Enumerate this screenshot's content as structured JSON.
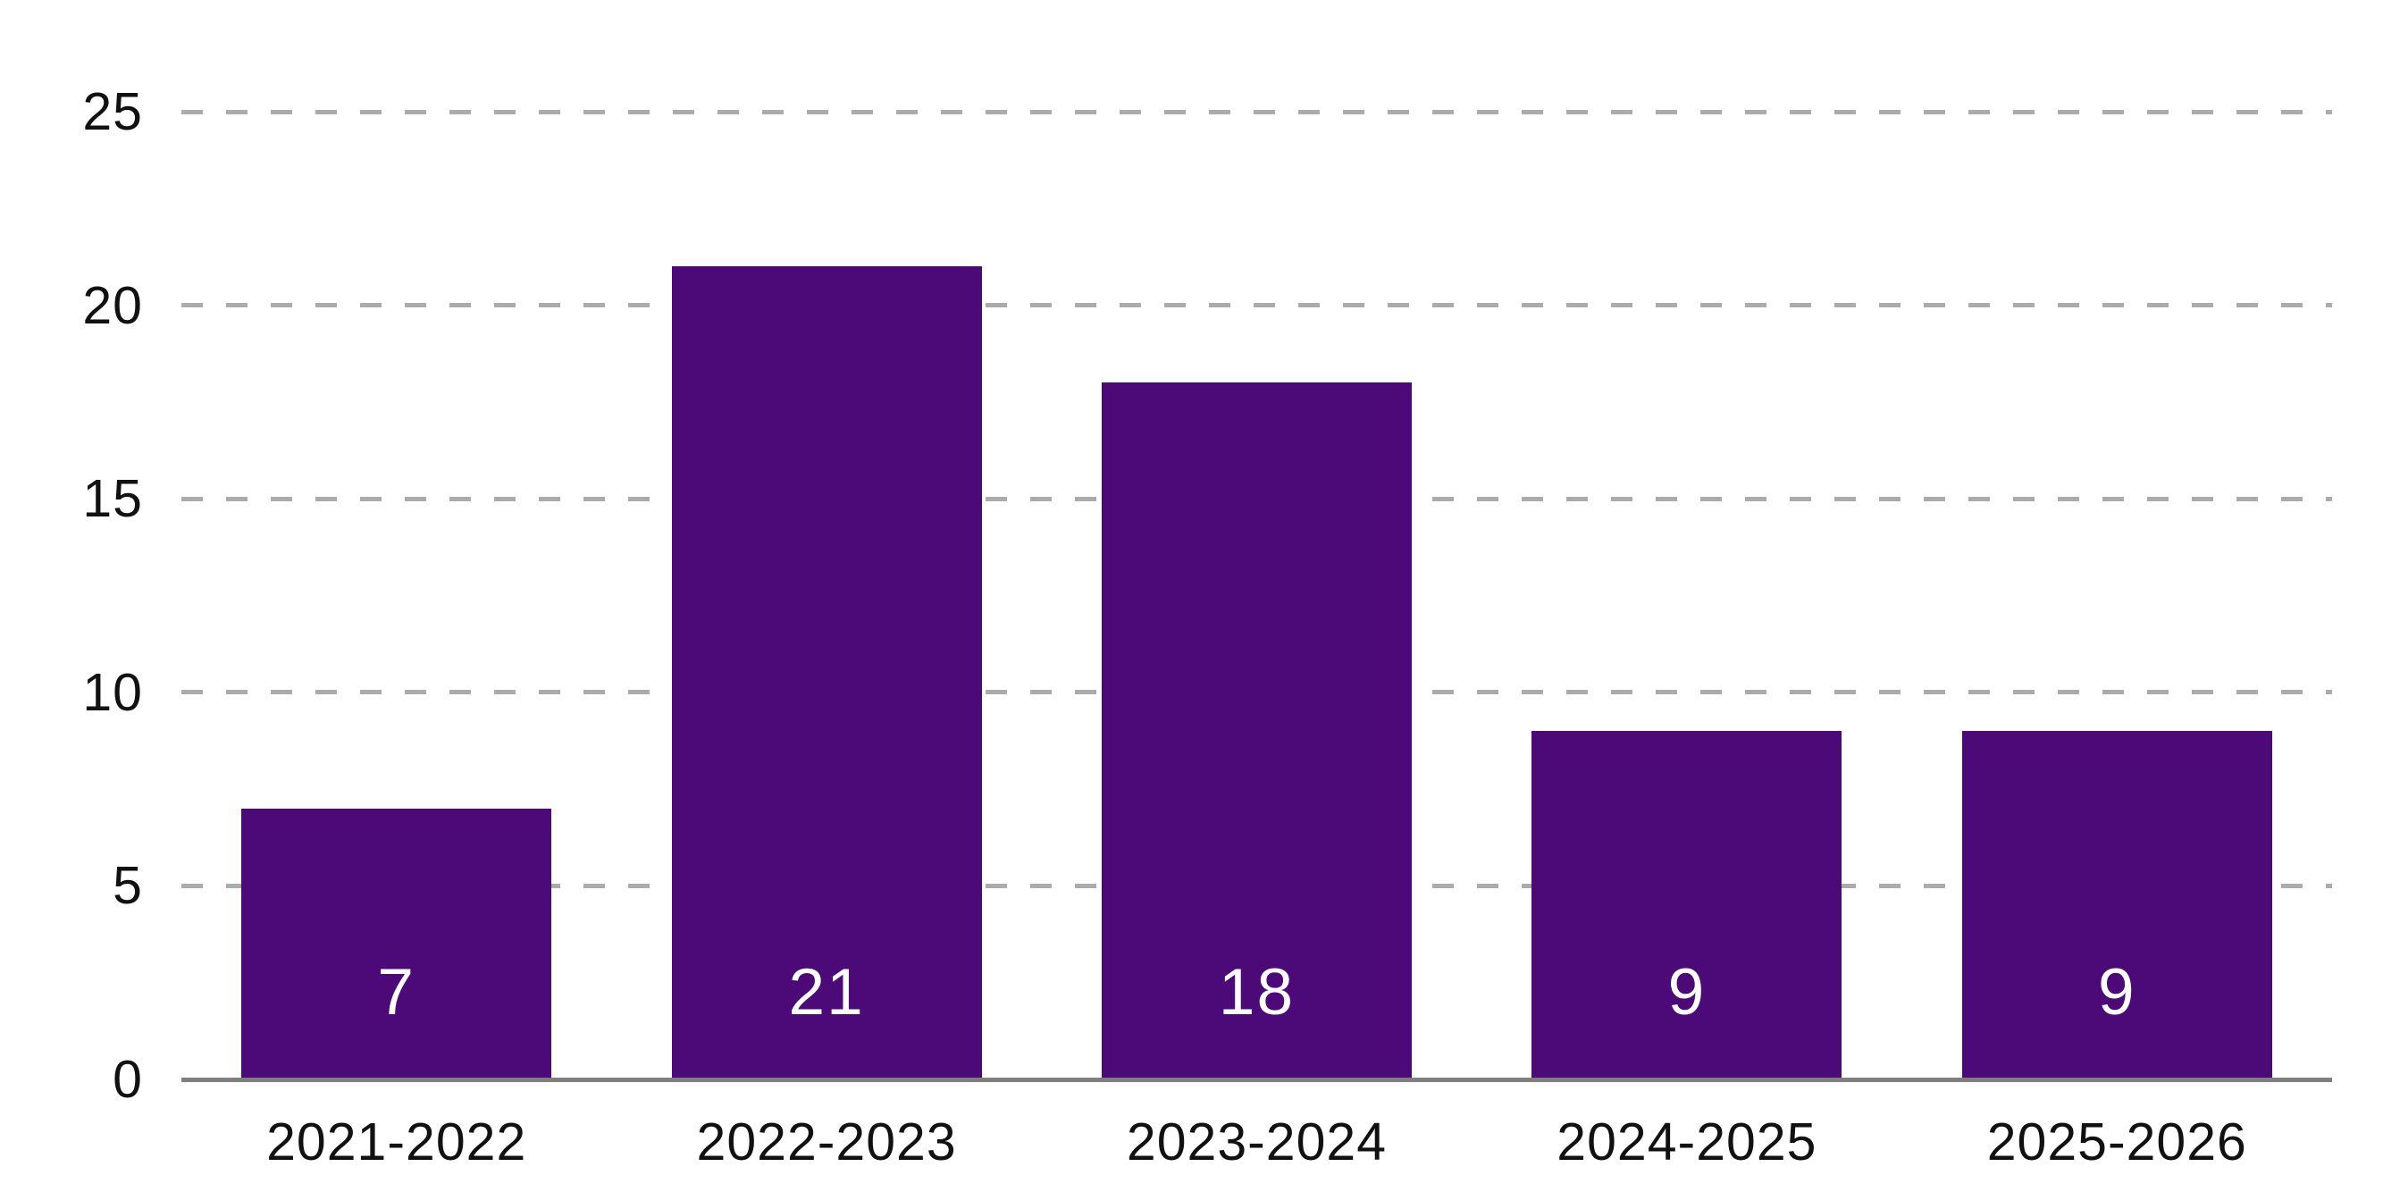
{
  "chart_data": {
    "type": "bar",
    "categories": [
      "2021-2022",
      "2022-2023",
      "2023-2024",
      "2024-2025",
      "2025-2026"
    ],
    "values": [
      7,
      21,
      18,
      9,
      9
    ],
    "bar_labels": [
      "7",
      "21",
      "18",
      "9",
      "9"
    ],
    "title": "",
    "xlabel": "",
    "ylabel": "",
    "ylim": [
      0,
      25
    ],
    "yticks": [
      0,
      5,
      10,
      15,
      20,
      25
    ],
    "grid": "horizontal-dashed",
    "legend_position": "none",
    "colors": {
      "bar": "#4c0a78",
      "bar_label_text": "#ffffff",
      "gridline": "#ababab",
      "axis_line": "#7f7f7f",
      "tick_label_text": "#111111",
      "background": "#ffffff"
    }
  }
}
